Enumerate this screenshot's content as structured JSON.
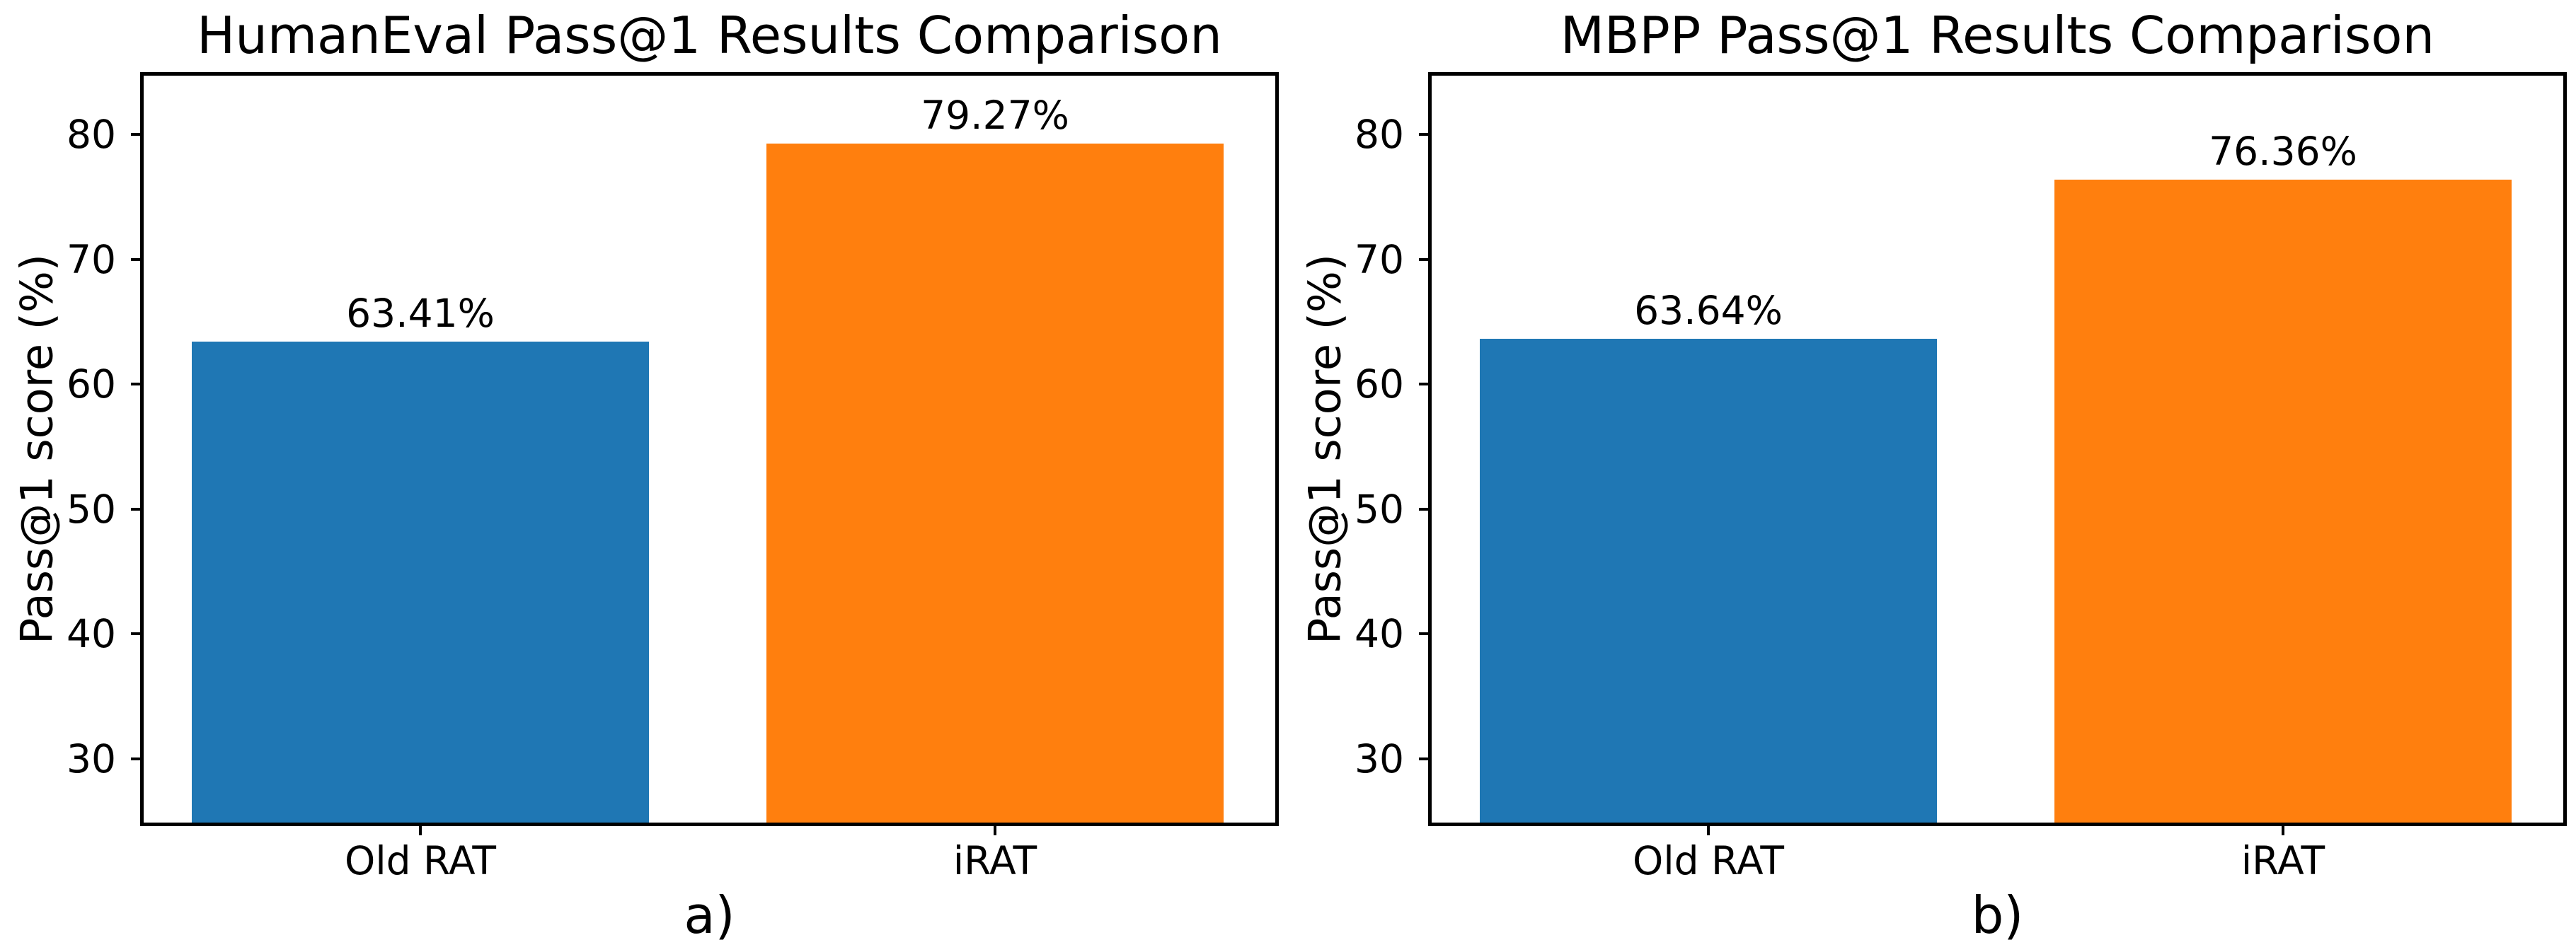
{
  "figure": {
    "background": "#ffffff",
    "text_color": "#000000",
    "axis_color": "#000000"
  },
  "chart_data": [
    {
      "type": "bar",
      "title": "HumanEval Pass@1 Results Comparison",
      "caption": "a)",
      "xlabel": "",
      "ylabel": "Pass@1 score (%)",
      "categories": [
        "Old RAT",
        "iRAT"
      ],
      "values": [
        63.41,
        79.27
      ],
      "value_labels": [
        "63.41%",
        "79.27%"
      ],
      "bar_colors": [
        "#1f77b4",
        "#ff7f0e"
      ],
      "ylim": [
        24.6,
        85.0
      ],
      "yticks": [
        30,
        40,
        50,
        60,
        70,
        80
      ],
      "grid": false,
      "legend_position": "none"
    },
    {
      "type": "bar",
      "title": "MBPP Pass@1 Results Comparison",
      "caption": "b)",
      "xlabel": "",
      "ylabel": "Pass@1 score (%)",
      "categories": [
        "Old RAT",
        "iRAT"
      ],
      "values": [
        63.64,
        76.36
      ],
      "value_labels": [
        "63.64%",
        "76.36%"
      ],
      "bar_colors": [
        "#1f77b4",
        "#ff7f0e"
      ],
      "ylim": [
        24.6,
        85.0
      ],
      "yticks": [
        30,
        40,
        50,
        60,
        70,
        80
      ],
      "grid": false,
      "legend_position": "none"
    }
  ]
}
